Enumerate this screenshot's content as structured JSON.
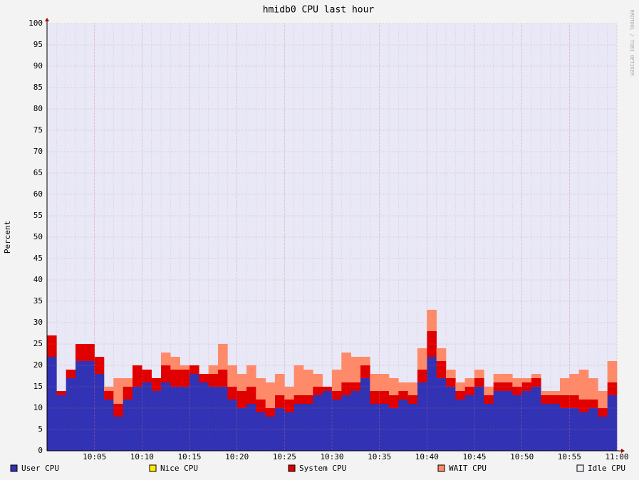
{
  "chart_data": {
    "type": "stacked_area",
    "title": "hmidb0 CPU last hour",
    "y_label": "Percent",
    "watermark": "RRDTOOL / TOBI OETIKER",
    "xlim": [
      0,
      60
    ],
    "xticks": [
      {
        "value": 5,
        "label": "10:05"
      },
      {
        "value": 10,
        "label": "10:10"
      },
      {
        "value": 15,
        "label": "10:15"
      },
      {
        "value": 20,
        "label": "10:20"
      },
      {
        "value": 25,
        "label": "10:25"
      },
      {
        "value": 30,
        "label": "10:30"
      },
      {
        "value": 35,
        "label": "10:35"
      },
      {
        "value": 40,
        "label": "10:40"
      },
      {
        "value": 45,
        "label": "10:45"
      },
      {
        "value": 50,
        "label": "10:50"
      },
      {
        "value": 55,
        "label": "10:55"
      },
      {
        "value": 60,
        "label": "11:00"
      }
    ],
    "ylim": [
      0,
      100
    ],
    "yticks": [
      0,
      5,
      10,
      15,
      20,
      25,
      30,
      35,
      40,
      45,
      50,
      55,
      60,
      65,
      70,
      75,
      80,
      85,
      90,
      95,
      100
    ],
    "grid": true,
    "x": [
      0,
      1,
      2,
      3,
      4,
      5,
      6,
      7,
      8,
      9,
      10,
      11,
      12,
      13,
      14,
      15,
      16,
      17,
      18,
      19,
      20,
      21,
      22,
      23,
      24,
      25,
      26,
      27,
      28,
      29,
      30,
      31,
      32,
      33,
      34,
      35,
      36,
      37,
      38,
      39,
      40,
      41,
      42,
      43,
      44,
      45,
      46,
      47,
      48,
      49,
      50,
      51,
      52,
      53,
      54,
      55,
      56,
      57,
      58,
      59
    ],
    "series": [
      {
        "name": "User CPU",
        "color": "#3232b4",
        "values": [
          22,
          13,
          17,
          21,
          21,
          18,
          12,
          8,
          12,
          15,
          16,
          14,
          16,
          15,
          15,
          18,
          16,
          15,
          15,
          12,
          10,
          11,
          9,
          8,
          10,
          9,
          11,
          11,
          13,
          14,
          12,
          13,
          14,
          17,
          11,
          11,
          10,
          12,
          11,
          16,
          22,
          17,
          15,
          12,
          13,
          15,
          11,
          14,
          14,
          13,
          14,
          15,
          11,
          11,
          10,
          10,
          9,
          10,
          8,
          13
        ]
      },
      {
        "name": "Nice CPU",
        "color": "#ffea00",
        "values": [
          0,
          0,
          0,
          0,
          0,
          0,
          0,
          0,
          0,
          0,
          0,
          0,
          0,
          0,
          0,
          0,
          0,
          0,
          0,
          0,
          0,
          0,
          0,
          0,
          0,
          0,
          0,
          0,
          0,
          0,
          0,
          0,
          0,
          0,
          0,
          0,
          0,
          0,
          0,
          0,
          0,
          0,
          0,
          0,
          0,
          0,
          0,
          0,
          0,
          0,
          0,
          0,
          0,
          0,
          0,
          0,
          0,
          0,
          0,
          0
        ]
      },
      {
        "name": "System CPU",
        "color": "#e00000",
        "values": [
          5,
          1,
          2,
          4,
          4,
          4,
          2,
          3,
          3,
          5,
          3,
          3,
          4,
          4,
          4,
          2,
          2,
          3,
          4,
          3,
          4,
          4,
          3,
          2,
          3,
          3,
          2,
          2,
          2,
          1,
          2,
          3,
          2,
          3,
          3,
          3,
          3,
          2,
          2,
          3,
          6,
          4,
          2,
          2,
          2,
          2,
          2,
          2,
          2,
          2,
          2,
          2,
          2,
          2,
          3,
          3,
          3,
          2,
          2,
          3
        ]
      },
      {
        "name": "WAIT CPU",
        "color": "#ff8a6a",
        "values": [
          0,
          0,
          0,
          0,
          0,
          0,
          1,
          6,
          2,
          0,
          0,
          0,
          3,
          3,
          1,
          0,
          0,
          2,
          6,
          5,
          4,
          5,
          5,
          6,
          5,
          3,
          7,
          6,
          3,
          0,
          5,
          7,
          6,
          2,
          4,
          4,
          4,
          2,
          3,
          5,
          5,
          3,
          2,
          2,
          2,
          2,
          2,
          2,
          2,
          2,
          1,
          1,
          1,
          1,
          4,
          5,
          7,
          5,
          4,
          5
        ]
      },
      {
        "name": "Idle CPU",
        "color": "#eeeef8"
      }
    ]
  }
}
